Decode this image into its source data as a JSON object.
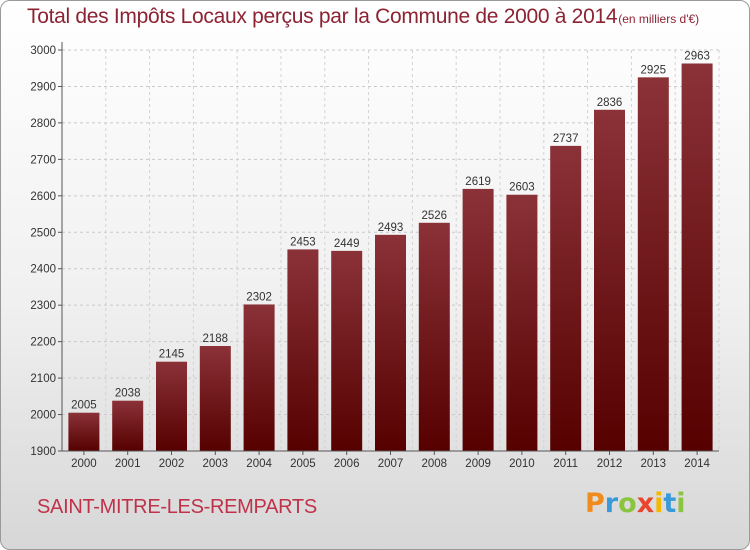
{
  "header": {
    "title": "Total des Impôts Locaux perçus par la Commune de 2000 à 2014",
    "subtitle": "(en milliers d'€)"
  },
  "commune_name": "SAINT-MITRE-LES-REMPARTS",
  "logo": {
    "letters": [
      "P",
      "r",
      "o",
      "x",
      "i",
      "t",
      "i"
    ],
    "colors": [
      "#f08c1e",
      "#3a9ad9",
      "#8bc53f",
      "#e8452c",
      "#f5b800",
      "#3a9ad9",
      "#8bc53f"
    ]
  },
  "colors": {
    "bar_top": "#8a3238",
    "bar_bottom": "#560000",
    "text": "#8c2333"
  },
  "chart_data": {
    "type": "bar",
    "title": "Total des Impôts Locaux perçus par la Commune de 2000 à 2014",
    "subtitle": "(en milliers d'€)",
    "categories": [
      "2000",
      "2001",
      "2002",
      "2003",
      "2004",
      "2005",
      "2006",
      "2007",
      "2008",
      "2009",
      "2010",
      "2011",
      "2012",
      "2013",
      "2014"
    ],
    "values": [
      2005,
      2038,
      2145,
      2188,
      2302,
      2453,
      2449,
      2493,
      2526,
      2619,
      2603,
      2737,
      2836,
      2925,
      2963
    ],
    "ylim": [
      1900,
      3000
    ],
    "yticks": [
      1900,
      2000,
      2100,
      2200,
      2300,
      2400,
      2500,
      2600,
      2700,
      2800,
      2900,
      3000
    ],
    "xlabel": "",
    "ylabel": "",
    "grid": true,
    "data_labels": true
  }
}
